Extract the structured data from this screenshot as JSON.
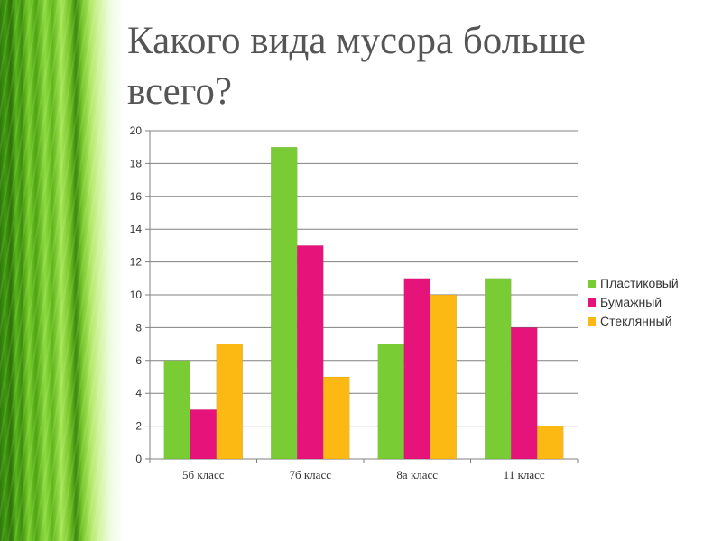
{
  "slide": {
    "title": "Какого вида мусора больше всего?"
  },
  "chart_data": {
    "type": "bar",
    "title": "",
    "xlabel": "",
    "ylabel": "",
    "categories": [
      "5б класс",
      "7б класс",
      "8а класс",
      "11 класс"
    ],
    "series": [
      {
        "name": "Пластиковый",
        "color": "#7acc35",
        "values": [
          6,
          19,
          7,
          11
        ]
      },
      {
        "name": "Бумажный",
        "color": "#e6137a",
        "values": [
          3,
          13,
          11,
          8
        ]
      },
      {
        "name": "Стеклянный",
        "color": "#fdb913",
        "values": [
          7,
          5,
          10,
          2
        ]
      }
    ],
    "ylim": [
      0,
      20
    ],
    "yticks": [
      0,
      2,
      4,
      6,
      8,
      10,
      12,
      14,
      16,
      18,
      20
    ],
    "grid": true,
    "legend_position": "right"
  }
}
